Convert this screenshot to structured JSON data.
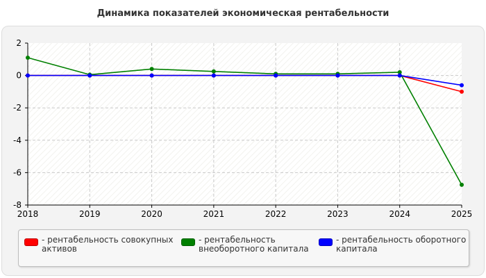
{
  "title": "Динамика показателей экономическая рентабельности",
  "chart_data": {
    "type": "line",
    "title": "Динамика показателей экономическая рентабельности",
    "x": [
      "2018",
      "2019",
      "2020",
      "2021",
      "2022",
      "2023",
      "2024",
      "2025"
    ],
    "ylim": [
      -8,
      2
    ],
    "yticks": [
      2,
      0,
      -2,
      -4,
      -6,
      -8
    ],
    "grid": true,
    "legend_position": "bottom",
    "series": [
      {
        "name": "- рентабельность совокупных активов",
        "color": "#ff0000",
        "values": [
          0,
          0,
          0,
          0,
          0,
          0,
          0,
          -1.0
        ]
      },
      {
        "name": "- рентабельность внеоборотного капитала",
        "color": "#008000",
        "values": [
          1.1,
          0.05,
          0.4,
          0.25,
          0.1,
          0.1,
          0.2,
          -6.75
        ]
      },
      {
        "name": "- рентабельность оборотного капитала",
        "color": "#0000ff",
        "values": [
          0,
          0,
          0,
          0,
          0,
          0,
          0,
          -0.6
        ]
      }
    ]
  },
  "legend": [
    {
      "line1": "- рентабельность совокупных",
      "line2": "активов",
      "color": "#ff0000"
    },
    {
      "line1": "- рентабельность",
      "line2": "внеоборотного капитала",
      "color": "#008000"
    },
    {
      "line1": "- рентабельность оборотного",
      "line2": "капитала",
      "color": "#0000ff"
    }
  ]
}
